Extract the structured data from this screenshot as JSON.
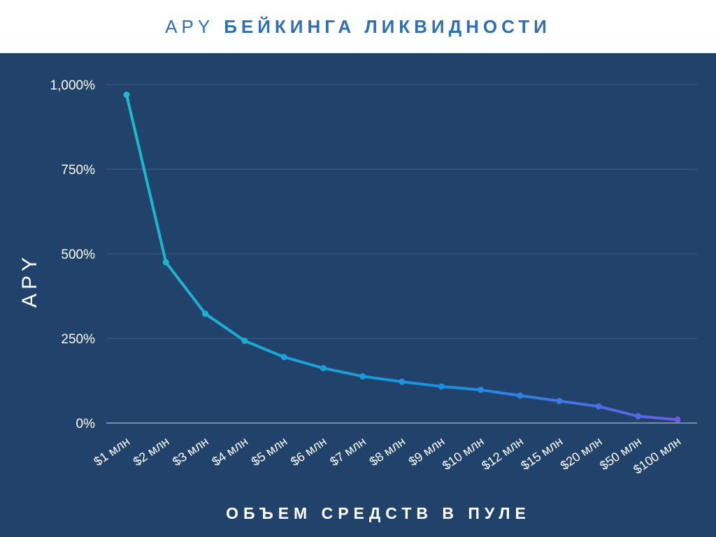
{
  "chart_data": {
    "type": "line",
    "title_light": "APY",
    "title_bold": "БЕЙКИНГА ЛИКВИДНОСТИ",
    "ylabel": "APY",
    "xlabel": "ОБЪЕМ СРЕДСТВ В ПУЛЕ",
    "categories": [
      "$1 млн",
      "$2 млн",
      "$3 млн",
      "$4 млн",
      "$5 млн",
      "$6 млн",
      "$7 млн",
      "$8 млн",
      "$9 млн",
      "$10 млн",
      "$12 млн",
      "$15 млн",
      "$20 млн",
      "$50 млн",
      "$100 млн"
    ],
    "values": [
      970,
      475,
      323,
      243,
      195,
      162,
      138,
      122,
      108,
      98,
      81,
      65,
      49,
      20,
      10
    ],
    "ylim": [
      0,
      1000
    ],
    "yticks": [
      0,
      250,
      500,
      750,
      1000
    ],
    "ytick_labels": [
      "0%",
      "250%",
      "500%",
      "750%",
      "1,000%"
    ],
    "grid": true,
    "colors": {
      "background": "#21436b",
      "grid": "#3d5f86",
      "line_start": "#1fb8cc",
      "line_mid": "#1a8fe0",
      "line_end": "#6a5ce0"
    }
  }
}
